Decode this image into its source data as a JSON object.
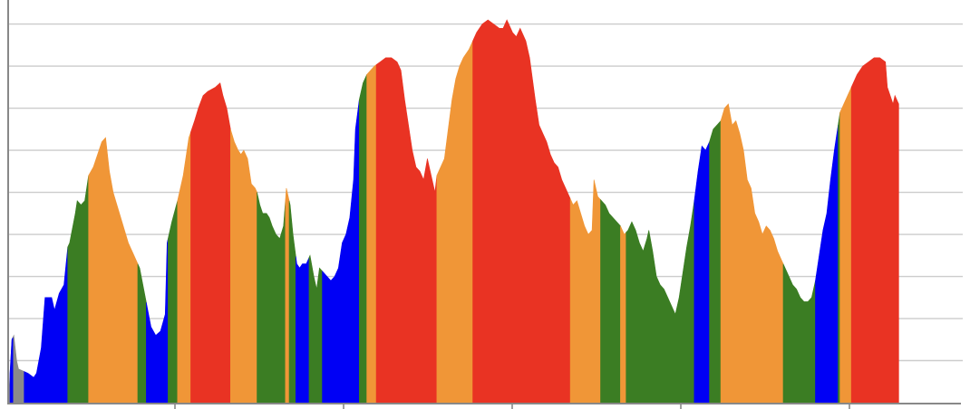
{
  "chart_data": {
    "type": "area",
    "title": "",
    "xlabel": "",
    "ylabel": "",
    "grid": true,
    "legend": "none",
    "x_ticks": 6,
    "ylim": [
      0,
      9.4
    ],
    "y_gridlines": [
      1,
      2,
      3,
      4,
      5,
      6,
      7,
      8,
      9
    ],
    "xlim": [
      0,
      1000
    ],
    "colors": {
      "gray": "#8a8a8a",
      "blue": "#0000f5",
      "green": "#3b7d23",
      "orange": "#f09637",
      "red": "#e93323",
      "grid": "#cccccc",
      "axis": "#888888"
    },
    "points": [
      [
        0,
        0.3
      ],
      [
        3,
        1.5
      ],
      [
        5,
        1.6
      ],
      [
        8,
        1.0
      ],
      [
        10,
        0.8
      ],
      [
        20,
        0.7
      ],
      [
        26,
        0.6
      ],
      [
        29,
        0.7
      ],
      [
        34,
        1.3
      ],
      [
        38,
        2.5
      ],
      [
        45,
        2.5
      ],
      [
        48,
        2.2
      ],
      [
        53,
        2.6
      ],
      [
        58,
        2.8
      ],
      [
        62,
        3.7
      ],
      [
        64,
        3.8
      ],
      [
        70,
        4.5
      ],
      [
        72,
        4.8
      ],
      [
        76,
        4.7
      ],
      [
        80,
        4.8
      ],
      [
        84,
        5.4
      ],
      [
        89,
        5.6
      ],
      [
        98,
        6.2
      ],
      [
        102,
        6.3
      ],
      [
        106,
        5.5
      ],
      [
        110,
        5.0
      ],
      [
        118,
        4.4
      ],
      [
        126,
        3.8
      ],
      [
        132,
        3.5
      ],
      [
        138,
        3.2
      ],
      [
        144,
        2.5
      ],
      [
        150,
        1.8
      ],
      [
        155,
        1.6
      ],
      [
        160,
        1.7
      ],
      [
        165,
        2.1
      ],
      [
        167,
        3.8
      ],
      [
        172,
        4.3
      ],
      [
        178,
        4.8
      ],
      [
        184,
        5.4
      ],
      [
        190,
        6.3
      ],
      [
        196,
        6.7
      ],
      [
        200,
        7.0
      ],
      [
        205,
        7.3
      ],
      [
        210,
        7.4
      ],
      [
        218,
        7.5
      ],
      [
        223,
        7.6
      ],
      [
        226,
        7.3
      ],
      [
        230,
        7.0
      ],
      [
        234,
        6.5
      ],
      [
        238,
        6.2
      ],
      [
        242,
        6.0
      ],
      [
        245,
        5.9
      ],
      [
        248,
        6.0
      ],
      [
        252,
        5.8
      ],
      [
        256,
        5.2
      ],
      [
        260,
        5.1
      ],
      [
        262,
        5.0
      ],
      [
        265,
        4.7
      ],
      [
        268,
        4.5
      ],
      [
        272,
        4.5
      ],
      [
        275,
        4.4
      ],
      [
        278,
        4.2
      ],
      [
        282,
        4.0
      ],
      [
        286,
        3.9
      ],
      [
        290,
        4.2
      ],
      [
        293,
        5.1
      ],
      [
        297,
        4.7
      ],
      [
        300,
        4.0
      ],
      [
        304,
        3.3
      ],
      [
        307,
        3.2
      ],
      [
        310,
        3.3
      ],
      [
        314,
        3.3
      ],
      [
        318,
        3.5
      ],
      [
        322,
        3.0
      ],
      [
        325,
        2.7
      ],
      [
        328,
        3.2
      ],
      [
        332,
        3.1
      ],
      [
        336,
        3.0
      ],
      [
        340,
        2.9
      ],
      [
        344,
        3.0
      ],
      [
        348,
        3.2
      ],
      [
        352,
        3.8
      ],
      [
        356,
        4.0
      ],
      [
        360,
        4.4
      ],
      [
        364,
        5.3
      ],
      [
        366,
        6.5
      ],
      [
        370,
        7.2
      ],
      [
        374,
        7.6
      ],
      [
        378,
        7.8
      ],
      [
        382,
        7.9
      ],
      [
        386,
        8.0
      ],
      [
        392,
        8.1
      ],
      [
        398,
        8.2
      ],
      [
        404,
        8.2
      ],
      [
        410,
        8.1
      ],
      [
        414,
        7.9
      ],
      [
        418,
        7.2
      ],
      [
        422,
        6.6
      ],
      [
        426,
        6.0
      ],
      [
        430,
        5.6
      ],
      [
        434,
        5.5
      ],
      [
        438,
        5.3
      ],
      [
        442,
        5.8
      ],
      [
        446,
        5.4
      ],
      [
        450,
        5.0
      ],
      [
        452,
        5.4
      ],
      [
        456,
        5.6
      ],
      [
        460,
        5.8
      ],
      [
        464,
        6.5
      ],
      [
        468,
        7.2
      ],
      [
        472,
        7.7
      ],
      [
        476,
        8.0
      ],
      [
        480,
        8.2
      ],
      [
        486,
        8.4
      ],
      [
        490,
        8.6
      ],
      [
        494,
        8.8
      ],
      [
        500,
        9.0
      ],
      [
        506,
        9.1
      ],
      [
        512,
        9.0
      ],
      [
        518,
        8.9
      ],
      [
        522,
        8.9
      ],
      [
        526,
        9.1
      ],
      [
        532,
        8.8
      ],
      [
        536,
        8.7
      ],
      [
        540,
        8.9
      ],
      [
        546,
        8.6
      ],
      [
        550,
        8.2
      ],
      [
        556,
        7.2
      ],
      [
        560,
        6.6
      ],
      [
        564,
        6.4
      ],
      [
        568,
        6.2
      ],
      [
        572,
        5.9
      ],
      [
        576,
        5.7
      ],
      [
        580,
        5.6
      ],
      [
        584,
        5.3
      ],
      [
        588,
        5.1
      ],
      [
        592,
        4.9
      ],
      [
        596,
        4.7
      ],
      [
        600,
        4.8
      ],
      [
        604,
        4.5
      ],
      [
        608,
        4.2
      ],
      [
        612,
        4.0
      ],
      [
        616,
        4.1
      ],
      [
        618,
        5.3
      ],
      [
        622,
        4.9
      ],
      [
        626,
        4.8
      ],
      [
        630,
        4.7
      ],
      [
        634,
        4.5
      ],
      [
        638,
        4.4
      ],
      [
        642,
        4.3
      ],
      [
        646,
        4.2
      ],
      [
        650,
        4.0
      ],
      [
        654,
        4.1
      ],
      [
        658,
        4.3
      ],
      [
        662,
        4.1
      ],
      [
        666,
        3.8
      ],
      [
        670,
        3.6
      ],
      [
        674,
        3.9
      ],
      [
        676,
        4.1
      ],
      [
        680,
        3.6
      ],
      [
        684,
        3.0
      ],
      [
        688,
        2.8
      ],
      [
        692,
        2.7
      ],
      [
        696,
        2.5
      ],
      [
        700,
        2.3
      ],
      [
        704,
        2.1
      ],
      [
        708,
        2.5
      ],
      [
        712,
        3.1
      ],
      [
        716,
        3.7
      ],
      [
        720,
        4.2
      ],
      [
        724,
        4.8
      ],
      [
        728,
        5.5
      ],
      [
        732,
        6.1
      ],
      [
        736,
        6.0
      ],
      [
        740,
        6.2
      ],
      [
        744,
        6.5
      ],
      [
        748,
        6.6
      ],
      [
        752,
        6.7
      ],
      [
        756,
        7.0
      ],
      [
        760,
        7.1
      ],
      [
        764,
        6.6
      ],
      [
        768,
        6.7
      ],
      [
        772,
        6.4
      ],
      [
        776,
        6.0
      ],
      [
        780,
        5.3
      ],
      [
        784,
        5.1
      ],
      [
        788,
        4.5
      ],
      [
        792,
        4.3
      ],
      [
        796,
        4.0
      ],
      [
        800,
        4.2
      ],
      [
        804,
        4.1
      ],
      [
        808,
        3.9
      ],
      [
        812,
        3.6
      ],
      [
        816,
        3.4
      ],
      [
        820,
        3.2
      ],
      [
        824,
        3.0
      ],
      [
        828,
        2.8
      ],
      [
        832,
        2.7
      ],
      [
        836,
        2.5
      ],
      [
        840,
        2.4
      ],
      [
        844,
        2.4
      ],
      [
        848,
        2.5
      ],
      [
        852,
        2.9
      ],
      [
        856,
        3.5
      ],
      [
        860,
        4.1
      ],
      [
        864,
        4.5
      ],
      [
        868,
        5.3
      ],
      [
        872,
        6.0
      ],
      [
        878,
        6.9
      ],
      [
        884,
        7.2
      ],
      [
        890,
        7.5
      ],
      [
        896,
        7.8
      ],
      [
        902,
        8.0
      ],
      [
        908,
        8.1
      ],
      [
        914,
        8.2
      ],
      [
        920,
        8.2
      ],
      [
        926,
        8.1
      ],
      [
        928,
        7.5
      ],
      [
        931,
        7.3
      ],
      [
        934,
        7.1
      ],
      [
        936,
        7.3
      ],
      [
        940,
        7.1
      ]
    ],
    "segments": [
      {
        "color": "gray",
        "x0": 0,
        "x1": 16
      },
      {
        "color": "blue",
        "x0": 1,
        "x1": 4
      },
      {
        "color": "blue",
        "x0": 16,
        "x1": 62
      },
      {
        "color": "green",
        "x0": 62,
        "x1": 84
      },
      {
        "color": "orange",
        "x0": 84,
        "x1": 136
      },
      {
        "color": "green",
        "x0": 136,
        "x1": 145
      },
      {
        "color": "blue",
        "x0": 145,
        "x1": 168
      },
      {
        "color": "green",
        "x0": 168,
        "x1": 178
      },
      {
        "color": "orange",
        "x0": 178,
        "x1": 192
      },
      {
        "color": "red",
        "x0": 192,
        "x1": 234
      },
      {
        "color": "orange",
        "x0": 234,
        "x1": 262
      },
      {
        "color": "green",
        "x0": 262,
        "x1": 292
      },
      {
        "color": "orange",
        "x0": 292,
        "x1": 296
      },
      {
        "color": "green",
        "x0": 296,
        "x1": 303
      },
      {
        "color": "blue",
        "x0": 303,
        "x1": 317
      },
      {
        "color": "green",
        "x0": 317,
        "x1": 331
      },
      {
        "color": "blue",
        "x0": 331,
        "x1": 370
      },
      {
        "color": "green",
        "x0": 370,
        "x1": 378
      },
      {
        "color": "orange",
        "x0": 378,
        "x1": 388
      },
      {
        "color": "red",
        "x0": 388,
        "x1": 452
      },
      {
        "color": "orange",
        "x0": 452,
        "x1": 490
      },
      {
        "color": "red",
        "x0": 490,
        "x1": 593
      },
      {
        "color": "orange",
        "x0": 593,
        "x1": 625
      },
      {
        "color": "green",
        "x0": 625,
        "x1": 646
      },
      {
        "color": "orange",
        "x0": 646,
        "x1": 652
      },
      {
        "color": "green",
        "x0": 652,
        "x1": 724
      },
      {
        "color": "blue",
        "x0": 724,
        "x1": 740
      },
      {
        "color": "green",
        "x0": 740,
        "x1": 752
      },
      {
        "color": "orange",
        "x0": 752,
        "x1": 818
      },
      {
        "color": "green",
        "x0": 818,
        "x1": 852
      },
      {
        "color": "blue",
        "x0": 852,
        "x1": 876
      },
      {
        "color": "green",
        "x0": 876,
        "x1": 878
      },
      {
        "color": "orange",
        "x0": 878,
        "x1": 890
      },
      {
        "color": "red",
        "x0": 890,
        "x1": 940
      }
    ]
  }
}
